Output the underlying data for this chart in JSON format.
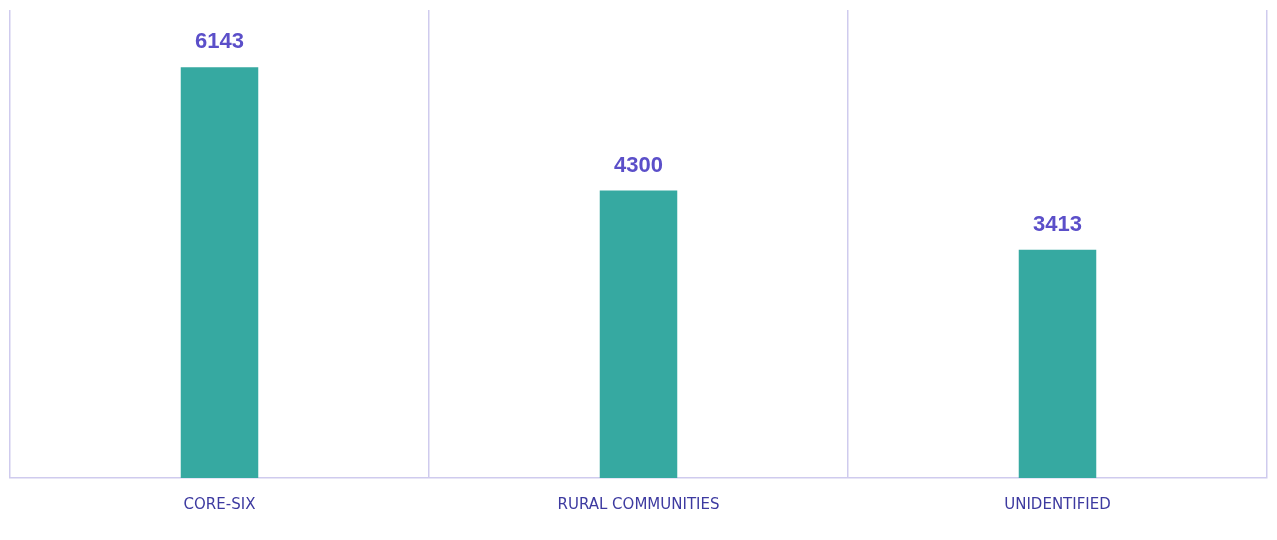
{
  "chart_data": {
    "type": "bar",
    "categories": [
      "CORE-SIX",
      "RURAL COMMUNITIES",
      "UNIDENTIFIED"
    ],
    "values": [
      6143,
      4300,
      3413
    ],
    "color": "#36a9a1",
    "data_labels": true,
    "grid": "x",
    "legend": false,
    "tick_labels": "x"
  }
}
